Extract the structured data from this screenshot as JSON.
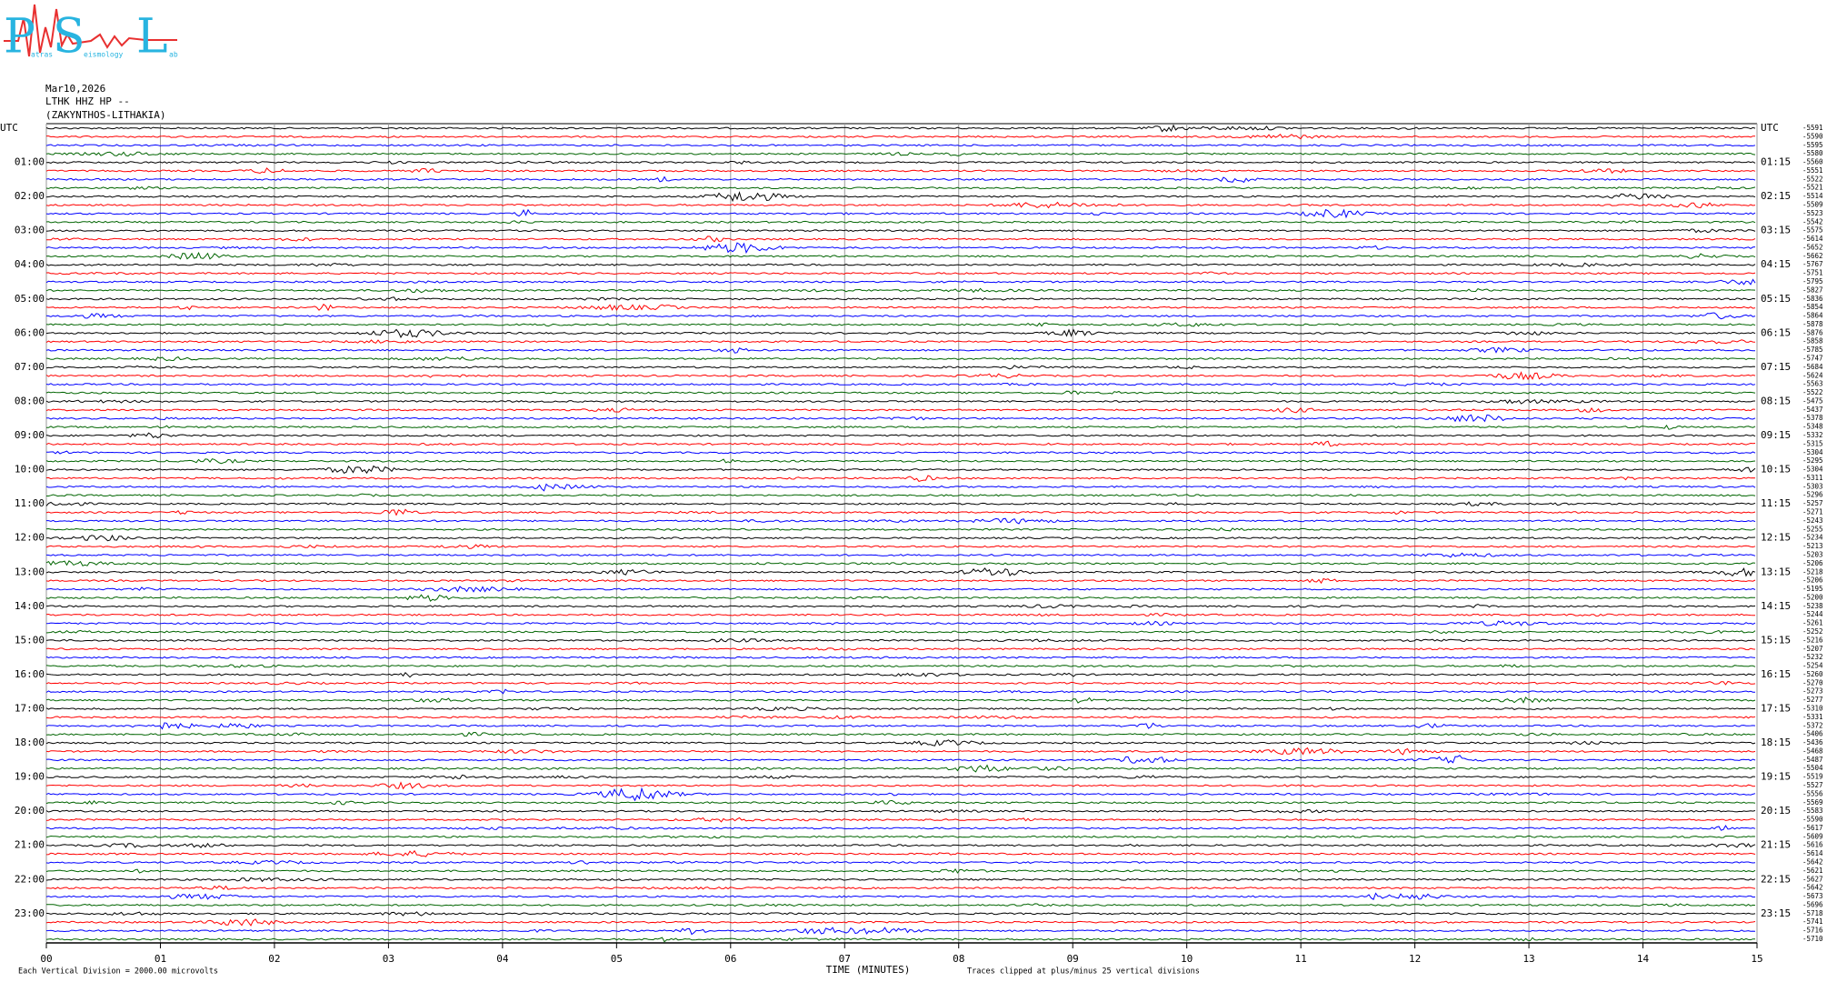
{
  "chart_data": {
    "type": "helicorder",
    "logo": {
      "letters": [
        "P",
        "S",
        "L"
      ],
      "words": [
        "atras",
        "eismology",
        "ab"
      ]
    },
    "title_lines": [
      "Mar10,2026",
      "LTHK HHZ HP --",
      "(ZAKYNTHOS-LITHAKIA)"
    ],
    "left_labels": [
      "UTC",
      "01:00",
      "02:00",
      "03:00",
      "04:00",
      "05:00",
      "06:00",
      "07:00",
      "08:00",
      "09:00",
      "10:00",
      "11:00",
      "12:00",
      "13:00",
      "14:00",
      "15:00",
      "16:00",
      "17:00",
      "18:00",
      "19:00",
      "20:00",
      "21:00",
      "22:00",
      "23:00"
    ],
    "right_labels": [
      "UTC",
      "01:15",
      "02:15",
      "03:15",
      "04:15",
      "05:15",
      "06:15",
      "07:15",
      "08:15",
      "09:15",
      "10:15",
      "11:15",
      "12:15",
      "13:15",
      "14:15",
      "15:15",
      "16:15",
      "17:15",
      "18:15",
      "19:15",
      "20:15",
      "21:15",
      "22:15",
      "23:15"
    ],
    "offsets": [
      -5591,
      -5590,
      -5595,
      -5580,
      -5560,
      -5551,
      -5522,
      -5521,
      -5514,
      -5509,
      -5523,
      -5542,
      -5575,
      -5614,
      -5652,
      -5662,
      -5767,
      -5751,
      -5795,
      -5827,
      -5836,
      -5854,
      -5864,
      -5878,
      -5876,
      -5858,
      -5785,
      -5747,
      -5684,
      -5624,
      -5563,
      -5522,
      -5475,
      -5437,
      -5378,
      -5348,
      -5332,
      -5315,
      -5304,
      -5295,
      -5304,
      -5311,
      -5303,
      -5296,
      -5257,
      -5271,
      -5243,
      -5255,
      -5234,
      -5213,
      -5203,
      -5206,
      -5218,
      -5206,
      -5195,
      -5200,
      -5238,
      -5244,
      -5261,
      -5252,
      -5216,
      -5207,
      -5232,
      -5254,
      -5260,
      -5270,
      -5273,
      -5277,
      -5310,
      -5331,
      -5372,
      -5406,
      -5436,
      -5468,
      -5487,
      -5504,
      -5519,
      -5527,
      -5556,
      -5569,
      -5583,
      -5590,
      -5617,
      -5609,
      -5616,
      -5614,
      -5642,
      -5621,
      -5627,
      -5642,
      -5673,
      -5696,
      -5718,
      -5741,
      -5716,
      -5710
    ],
    "trace_colors": [
      "#000000",
      "#ff0000",
      "#0000ff",
      "#006400"
    ],
    "xlim": [
      0,
      15
    ],
    "xticks": [
      {
        "value": 0,
        "label": "00"
      },
      {
        "value": 1,
        "label": "01"
      },
      {
        "value": 2,
        "label": "02"
      },
      {
        "value": 3,
        "label": "03"
      },
      {
        "value": 4,
        "label": "04"
      },
      {
        "value": 5,
        "label": "05"
      },
      {
        "value": 6,
        "label": "06"
      },
      {
        "value": 7,
        "label": "07"
      },
      {
        "value": 8,
        "label": "08"
      },
      {
        "value": 9,
        "label": "09"
      },
      10,
      11,
      12,
      13,
      14,
      15
    ],
    "xlabel": "TIME (MINUTES)",
    "footnote_left": "Each Vertical Division = 2000.00 microvolts",
    "footnote_right": "Traces clipped at plus/minus 25 vertical divisions",
    "grid": true
  }
}
